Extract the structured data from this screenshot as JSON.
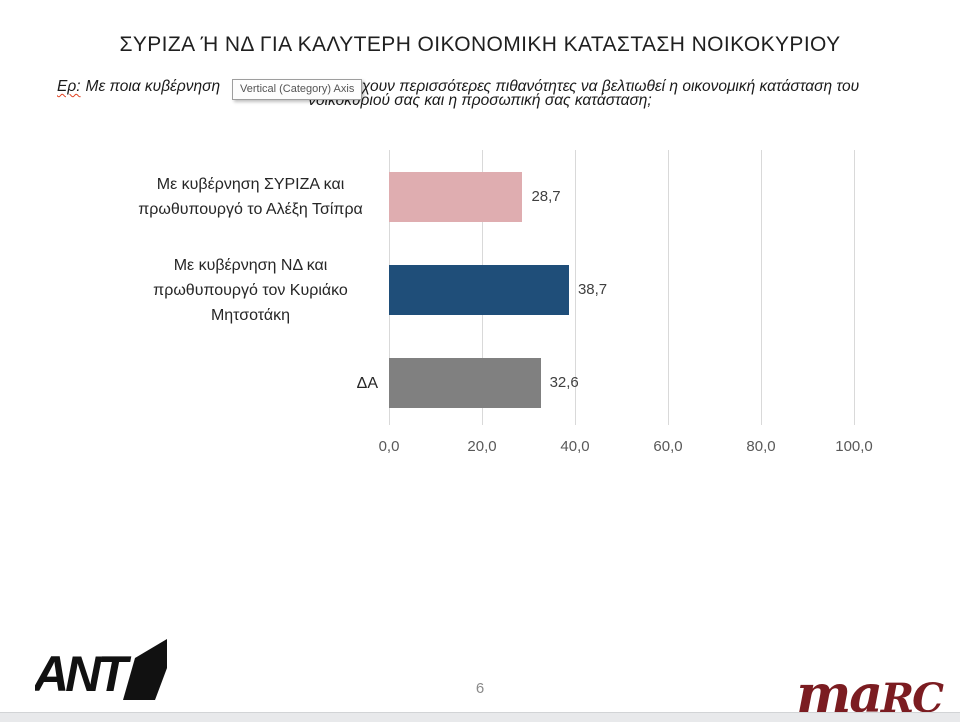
{
  "slide": {
    "title": "ΣΥΡΙΖΑ Ή ΝΔ ΓΙΑ ΚΑΛΥΤΕΡΗ ΟΙΚΟΝΟΜΙΚΗ ΚΑΤΑΣΤΑΣΗ ΝΟΙΚΟΚΥΡΙΟΥ",
    "question": {
      "prefix": "Ερ:",
      "before_tooltip": "Με ποια κυβέρνηση",
      "after_tooltip": "άρχουν περισσότερες πιθανότητες να βελτιωθεί η οικονομική κατάσταση του",
      "line2": "νοικοκυριού σας και η προσωπική σας κατάσταση;"
    },
    "page_number": "6"
  },
  "tooltip": {
    "label": "Vertical (Category) Axis"
  },
  "chart_data": {
    "type": "bar",
    "orientation": "horizontal",
    "title": "",
    "xlabel": "",
    "ylabel": "",
    "categories": [
      "Με  κυβέρνηση ΣΥΡΙΖΑ και πρωθυπουργό το Αλέξη Τσίπρα",
      "Με  κυβέρνηση ΝΔ και πρωθυπουργό τον Κυριάκο Μητσοτάκη",
      "ΔΑ"
    ],
    "values": [
      28.7,
      38.7,
      32.6
    ],
    "value_labels": [
      "28,7",
      "38,7",
      "32,6"
    ],
    "series_colors": [
      "#dfadb0",
      "#1f4e79",
      "#808080"
    ],
    "xlim": [
      0,
      100
    ],
    "x_ticks": [
      "0,0",
      "20,0",
      "40,0",
      "60,0",
      "80,0",
      "100,0"
    ],
    "grid": true,
    "legend": false
  },
  "footer": {
    "ant1_logo_text": "ANT",
    "marc_logo": {
      "part1": "ma",
      "part2": "RC",
      "color": "#7b1c21"
    }
  }
}
